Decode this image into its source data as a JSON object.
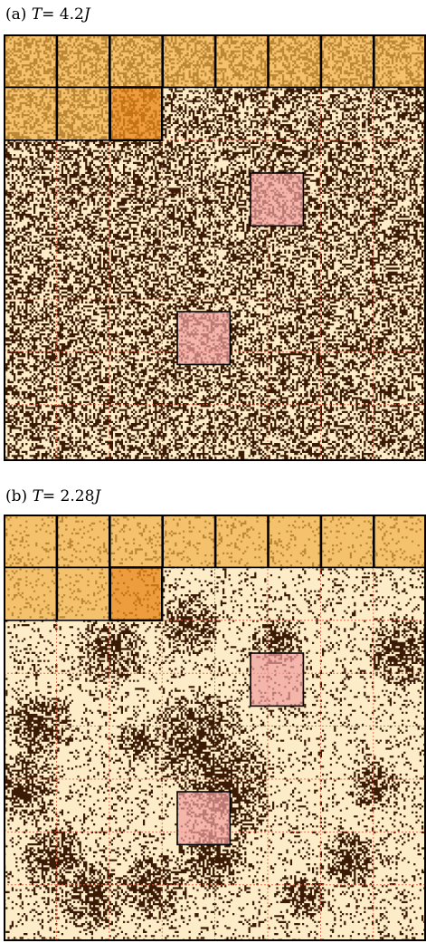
{
  "panels": [
    {
      "tag": "(a)",
      "temp_symbol": "T",
      "temp_value": "= 4.2",
      "temp_unit": "J",
      "spin_density": 0.46,
      "clustered": false
    },
    {
      "tag": "(b)",
      "temp_symbol": "T",
      "temp_value": "= 2.28",
      "temp_unit": "J",
      "spin_density": 0.14,
      "clustered": true
    }
  ],
  "colors": {
    "background": "#fdecc8",
    "spin": "#3b1a06",
    "grid_lines": "#e05a3a",
    "top_block_fill": "#f0b24a",
    "selected_block_fill": "#e8891a",
    "highlight_block_fill": "#f0a0a0",
    "frame": "#000000"
  }
}
